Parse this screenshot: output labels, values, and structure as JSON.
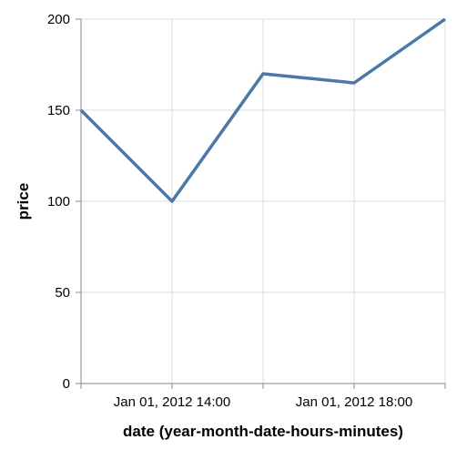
{
  "chart_data": {
    "type": "line",
    "title": "",
    "xlabel": "date (year-month-date-hours-minutes)",
    "ylabel": "price",
    "x": [
      "2012-01-01 12:00",
      "2012-01-01 14:00",
      "2012-01-01 16:00",
      "2012-01-01 18:00",
      "2012-01-01 20:00"
    ],
    "series": [
      {
        "values": [
          150,
          100,
          170,
          165,
          200
        ],
        "color": "#4c78a8"
      }
    ],
    "ylim": [
      0,
      200
    ],
    "yticks": [
      0,
      50,
      100,
      150,
      200
    ],
    "xtick_labels": [
      {
        "x": "2012-01-01 14:00",
        "label": "Jan 01, 2012 14:00"
      },
      {
        "x": "2012-01-01 18:00",
        "label": "Jan 01, 2012 18:00"
      }
    ],
    "grid": true
  }
}
